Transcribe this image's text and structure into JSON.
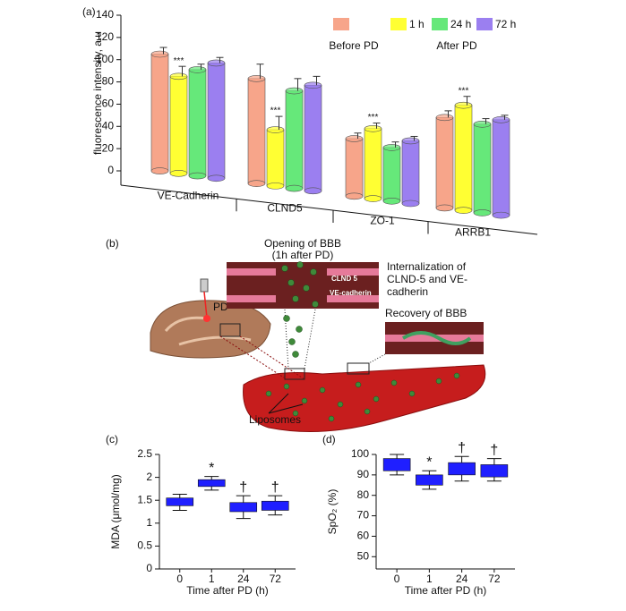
{
  "chart_data": [
    {
      "type": "bar3d",
      "panel_label": "(a)",
      "y_label": "fluorescence intensity, a.u",
      "categories": [
        "VE-Cadherin",
        "CLND5",
        "ZO-1",
        "ARRB1"
      ],
      "ylim": [
        0,
        140
      ],
      "yticks": [
        0,
        20,
        40,
        60,
        80,
        100,
        120,
        140
      ],
      "legend_group": "After PD",
      "series": [
        {
          "name": "Before PD",
          "color": "#f7a58a",
          "values": [
            105,
            83,
            29,
            48
          ],
          "errors": [
            6,
            13,
            5,
            6
          ]
        },
        {
          "name": "1 h",
          "color": "#ffff33",
          "values": [
            85,
            37,
            38,
            59
          ],
          "errors": [
            9,
            12,
            5,
            8
          ],
          "annotations": [
            "***",
            "***",
            "***",
            "***"
          ]
        },
        {
          "name": "24 h",
          "color": "#66e87a",
          "values": [
            91,
            72,
            21,
            42
          ],
          "errors": [
            5,
            11,
            5,
            5
          ]
        },
        {
          "name": "72 h",
          "color": "#9b7ff0",
          "values": [
            97,
            77,
            27,
            46
          ],
          "errors": [
            5,
            8,
            4,
            4
          ]
        }
      ]
    },
    {
      "type": "box",
      "panel_label": "(c)",
      "y_label": "MDA (μmol/mg)",
      "x_label": "Time after PD (h)",
      "categories": [
        "0",
        "1",
        "24",
        "72"
      ],
      "color": "#1f1fff",
      "ylim": [
        0,
        2.5
      ],
      "yticks": [
        0,
        0.5,
        1,
        1.5,
        2,
        2.5
      ],
      "low": [
        1.28,
        1.72,
        1.1,
        1.18
      ],
      "q1": [
        1.38,
        1.8,
        1.25,
        1.28
      ],
      "q3": [
        1.55,
        1.95,
        1.45,
        1.48
      ],
      "high": [
        1.63,
        2.02,
        1.6,
        1.6
      ],
      "annotations": [
        null,
        "*",
        "†",
        "†"
      ]
    },
    {
      "type": "box",
      "panel_label": "(d)",
      "y_label": "SpO₂ (%)",
      "x_label": "Time after PD (h)",
      "categories": [
        "0",
        "1",
        "24",
        "72"
      ],
      "color": "#1f1fff",
      "ylim": [
        44,
        100
      ],
      "yticks": [
        50,
        60,
        70,
        80,
        90,
        100
      ],
      "low": [
        90,
        83,
        87,
        87
      ],
      "q1": [
        92,
        85,
        90,
        89
      ],
      "q3": [
        98,
        90,
        96,
        95
      ],
      "high": [
        100,
        92,
        99,
        98
      ],
      "annotations": [
        null,
        "*",
        "†",
        "†"
      ]
    }
  ],
  "diagram": {
    "label": "(b)",
    "opening": [
      "Opening of BBB",
      "(1h after PD)"
    ],
    "internalization": [
      "Internalization of",
      "CLND-5 and VE-",
      "cadherin"
    ],
    "recovery": "Recovery of BBB",
    "pd": "PD",
    "inset_labels": [
      "CLND 5",
      "VE-cadherin"
    ],
    "liposomes": "Liposomes"
  }
}
